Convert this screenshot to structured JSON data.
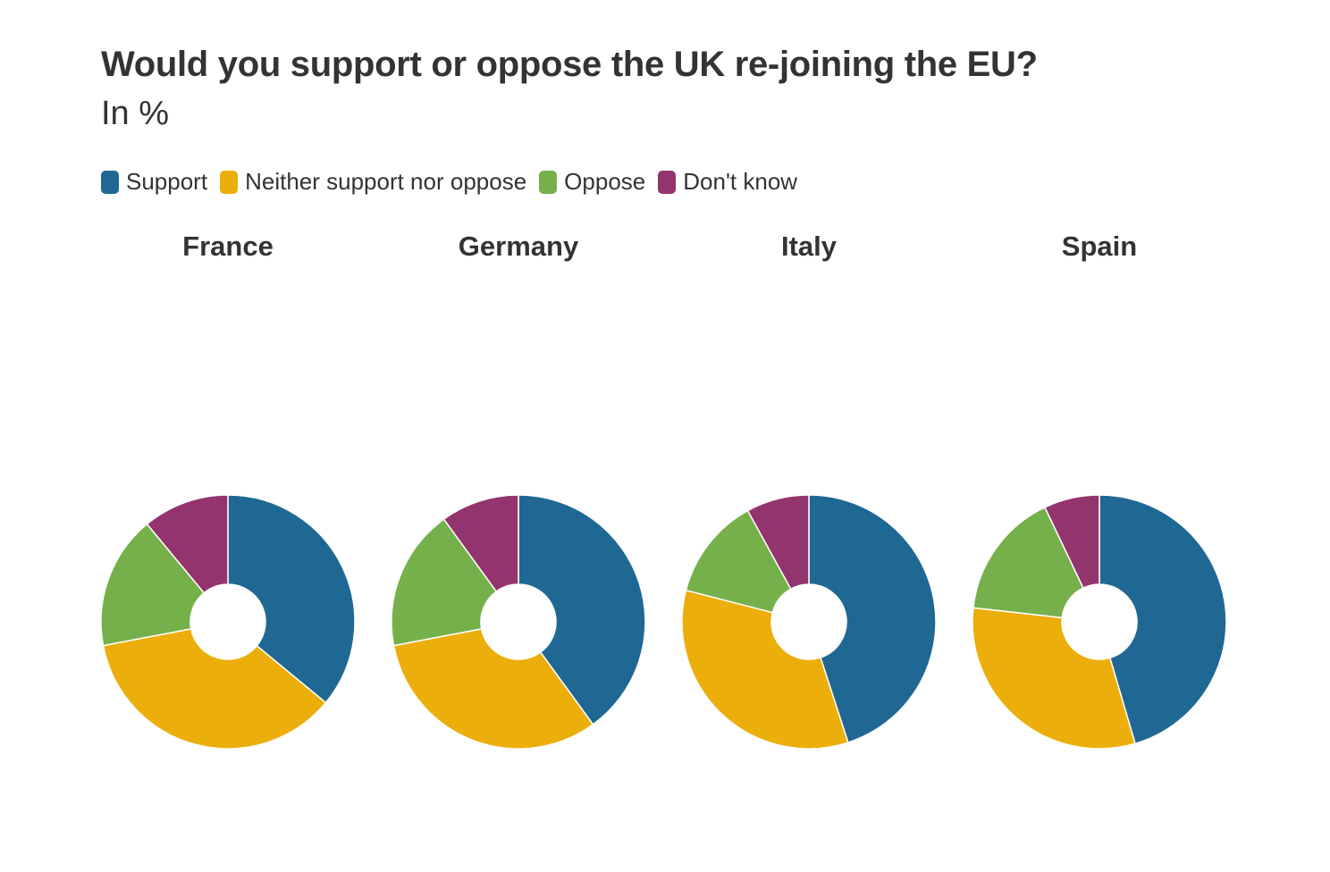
{
  "chart_data": {
    "type": "pie",
    "title": "Would you support or oppose the UK re-joining the EU?",
    "subtitle": "In %",
    "legend_position": "top-left",
    "categories": [
      "Support",
      "Neither support nor oppose",
      "Oppose",
      "Don't know"
    ],
    "colors": [
      "#1f6894",
      "#ecae0b",
      "#76b04b",
      "#94346e"
    ],
    "series": [
      {
        "name": "France",
        "values": [
          36,
          36,
          17,
          11
        ]
      },
      {
        "name": "Germany",
        "values": [
          40,
          32,
          18,
          10
        ]
      },
      {
        "name": "Italy",
        "values": [
          45,
          34,
          13,
          8
        ]
      },
      {
        "name": "Spain",
        "values": [
          45,
          31,
          16,
          7
        ]
      }
    ]
  }
}
